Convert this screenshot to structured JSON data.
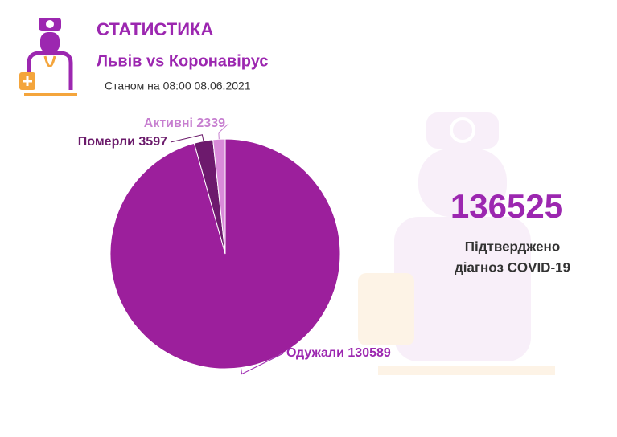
{
  "chart_data": {
    "type": "pie",
    "title": "СТАТИСТИКА",
    "subtitle": "Львів vs Коронавірус",
    "date": "Станом на 08:00 08.06.2021",
    "categories": [
      "Одужали",
      "Померли",
      "Активні"
    ],
    "values": [
      130589,
      3597,
      2339
    ],
    "colors": [
      "#9c1f9c",
      "#6d1a6d",
      "#d98ad9"
    ],
    "label_colors": [
      "#9c27b0",
      "#6b1b6b",
      "#c77fd0"
    ],
    "total": 136525,
    "total_label": [
      "Підтверджено",
      "діагноз COVID-19"
    ]
  }
}
